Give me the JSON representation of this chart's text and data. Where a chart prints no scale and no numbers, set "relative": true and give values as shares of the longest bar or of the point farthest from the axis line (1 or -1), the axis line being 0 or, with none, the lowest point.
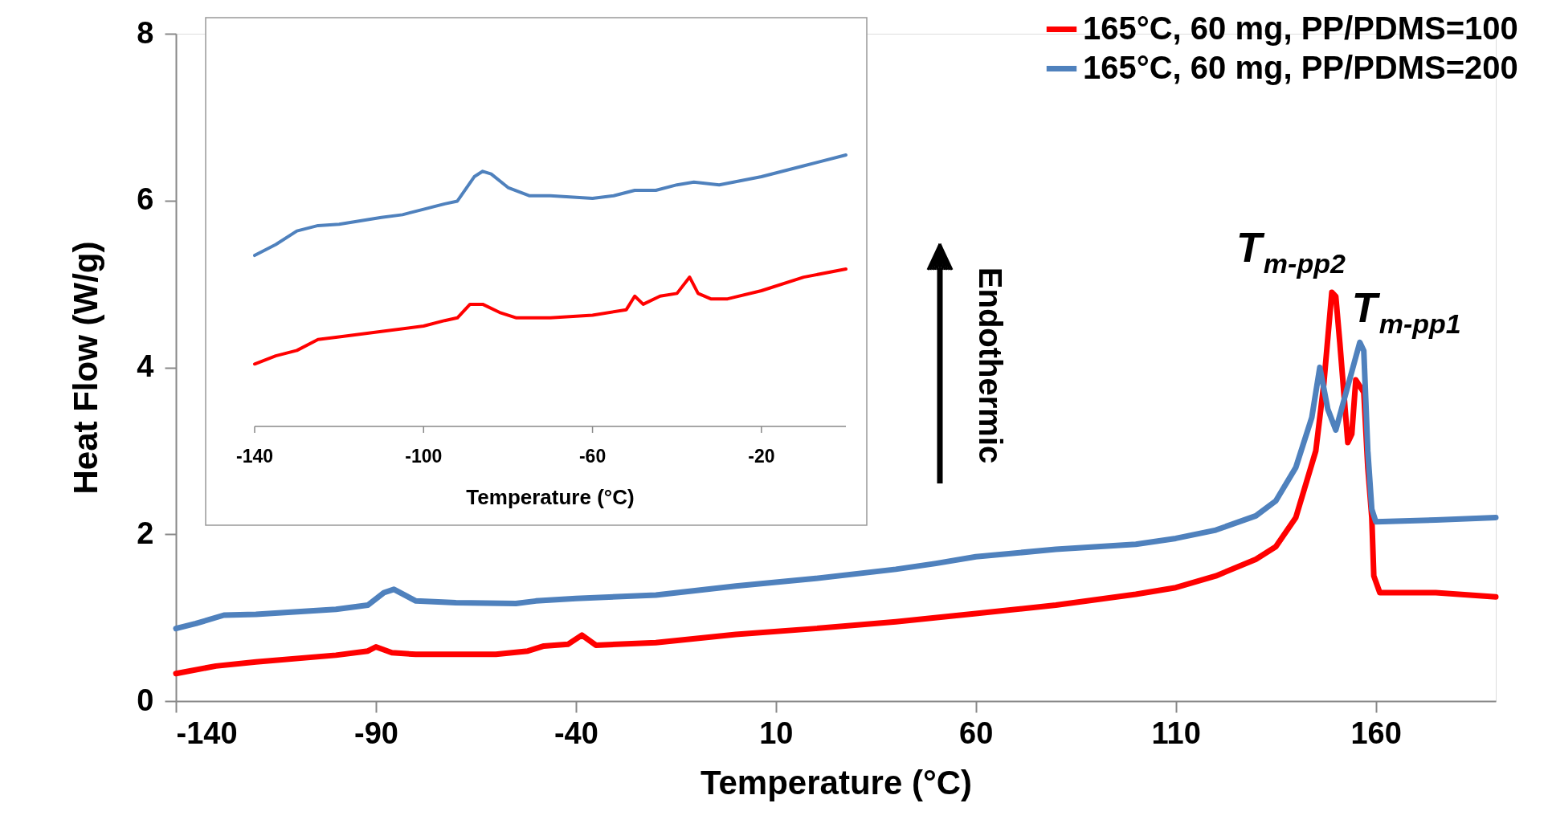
{
  "chart_data": [
    {
      "type": "line",
      "xlabel": "Temperature (°C)",
      "ylabel": "Heat Flow (W/g)",
      "xlim": [
        -140,
        190
      ],
      "xticks": [
        -140,
        -90,
        -40,
        10,
        60,
        110,
        160
      ],
      "ylim": [
        0,
        8
      ],
      "yticks": [
        0,
        2,
        4,
        6,
        8
      ],
      "grid": false,
      "legend": "top right",
      "marker": "none",
      "line_style": "solid",
      "annotations": [
        {
          "text": "T$_{m-pp2}$",
          "x": 149,
          "y": 4.9
        },
        {
          "text": "T$_{m-pp1}$",
          "x": 156,
          "y": 4.3
        },
        "Endothermic"
      ],
      "series": [
        {
          "name": "165°C, 60 mg, PP/PDMS=100",
          "color": "#ff0000",
          "x": [
            -140,
            -130,
            -120,
            -100,
            -92,
            -90,
            -86,
            -80,
            -60,
            -52,
            -48,
            -42,
            -38.5,
            -35,
            -20,
            0,
            20,
            40,
            60,
            80,
            100,
            110,
            120,
            130,
            135,
            140,
            145,
            147,
            149,
            150,
            151,
            153,
            154,
            155,
            157,
            158,
            159,
            159.5,
            161,
            175,
            190
          ],
          "values": [
            0.33,
            0.42,
            0.47,
            0.55,
            0.6,
            0.65,
            0.58,
            0.56,
            0.56,
            0.6,
            0.66,
            0.68,
            0.79,
            0.67,
            0.7,
            0.8,
            0.87,
            0.95,
            1.05,
            1.15,
            1.28,
            1.36,
            1.5,
            1.7,
            1.85,
            2.2,
            3.0,
            3.8,
            4.9,
            4.85,
            4.3,
            3.1,
            3.2,
            3.85,
            3.7,
            2.8,
            2.2,
            1.5,
            1.3,
            1.3,
            1.25
          ]
        },
        {
          "name": "165°C, 60 mg, PP/PDMS=200",
          "color": "#4f81bd",
          "x": [
            -140,
            -135,
            -128,
            -120,
            -100,
            -92,
            -88,
            -85.5,
            -80,
            -70,
            -55,
            -50,
            -40,
            -20,
            0,
            20,
            40,
            50,
            60,
            80,
            100,
            110,
            120,
            130,
            135,
            140,
            144,
            146,
            148,
            150,
            152,
            156,
            157,
            158,
            159,
            160,
            175,
            190
          ],
          "values": [
            0.87,
            0.93,
            1.03,
            1.04,
            1.1,
            1.15,
            1.3,
            1.34,
            1.2,
            1.18,
            1.17,
            1.2,
            1.23,
            1.27,
            1.38,
            1.47,
            1.58,
            1.65,
            1.73,
            1.82,
            1.88,
            1.95,
            2.05,
            2.22,
            2.4,
            2.8,
            3.4,
            4.0,
            3.5,
            3.25,
            3.6,
            4.3,
            4.2,
            3.0,
            2.3,
            2.15,
            2.17,
            2.2
          ]
        }
      ]
    },
    {
      "type": "line",
      "xlabel": "Temperature (°C)",
      "relative": true,
      "xlim": [
        -140,
        0
      ],
      "xticks": [
        -140,
        -100,
        -60,
        -20
      ],
      "grid": false,
      "marker": "none",
      "line_style": "solid",
      "series": [
        {
          "color": "#ff0000",
          "x": [
            -140,
            -135,
            -130,
            -125,
            -120,
            -110,
            -100,
            -95,
            -92,
            -89,
            -86,
            -82,
            -78,
            -70,
            -60,
            -52,
            -50,
            -48,
            -44,
            -40,
            -37,
            -35,
            -32,
            -28,
            -20,
            -10,
            0
          ],
          "values": [
            0.23,
            0.26,
            0.28,
            0.32,
            0.33,
            0.35,
            0.37,
            0.39,
            0.4,
            0.45,
            0.45,
            0.42,
            0.4,
            0.4,
            0.41,
            0.43,
            0.48,
            0.45,
            0.48,
            0.49,
            0.55,
            0.49,
            0.47,
            0.47,
            0.5,
            0.55,
            0.58
          ]
        },
        {
          "color": "#4f81bd",
          "x": [
            -140,
            -135,
            -130,
            -125,
            -120,
            -110,
            -105,
            -100,
            -95,
            -92,
            -88,
            -86,
            -84,
            -80,
            -75,
            -70,
            -60,
            -55,
            -50,
            -45,
            -40,
            -36,
            -30,
            -20,
            -10,
            0
          ],
          "values": [
            0.63,
            0.67,
            0.72,
            0.74,
            0.745,
            0.77,
            0.78,
            0.8,
            0.82,
            0.83,
            0.92,
            0.94,
            0.93,
            0.88,
            0.85,
            0.85,
            0.84,
            0.85,
            0.87,
            0.87,
            0.89,
            0.9,
            0.89,
            0.92,
            0.96,
            1.0
          ]
        }
      ]
    }
  ]
}
